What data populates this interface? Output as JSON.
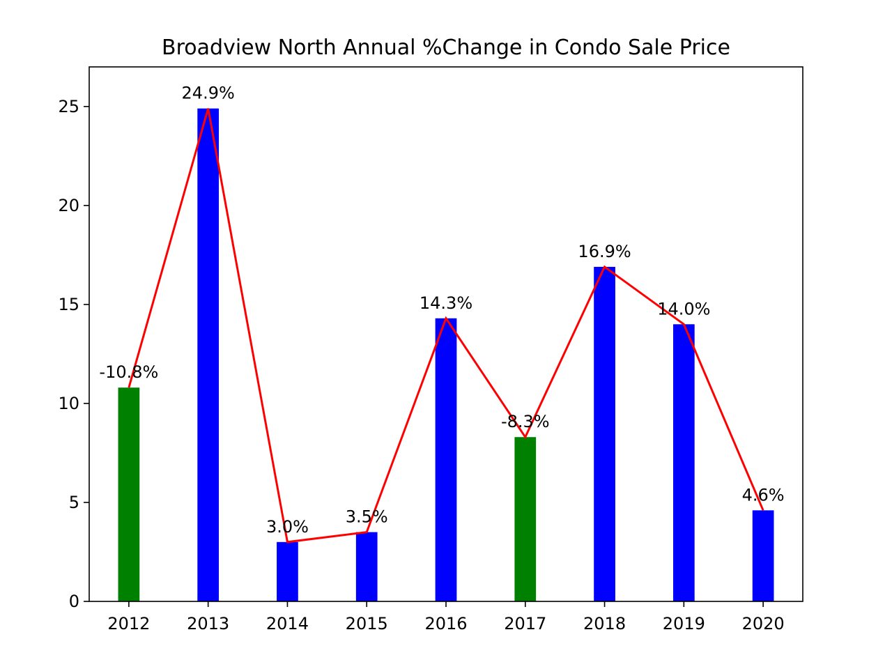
{
  "chart_data": {
    "type": "bar",
    "title": "Broadview North Annual %Change in Condo Sale Price",
    "xlabel": "",
    "ylabel": "",
    "categories": [
      "2012",
      "2013",
      "2014",
      "2015",
      "2016",
      "2017",
      "2018",
      "2019",
      "2020"
    ],
    "values": [
      10.8,
      24.9,
      3.0,
      3.5,
      14.3,
      8.3,
      16.9,
      14.0,
      4.6
    ],
    "data_labels": [
      "-10.8%",
      "24.9%",
      "3.0%",
      "3.5%",
      "14.3%",
      "-8.3%",
      "16.9%",
      "14.0%",
      "4.6%"
    ],
    "bar_colors": [
      "#008000",
      "#0000ff",
      "#0000ff",
      "#0000ff",
      "#0000ff",
      "#008000",
      "#0000ff",
      "#0000ff",
      "#0000ff"
    ],
    "line": {
      "values": [
        10.8,
        24.9,
        3.0,
        3.5,
        14.3,
        8.3,
        16.9,
        14.0,
        4.6
      ],
      "color": "#ff0000"
    },
    "ylim": [
      0,
      27
    ],
    "yticks": [
      0,
      5,
      10,
      15,
      20,
      25
    ],
    "grid": false,
    "colors": {
      "positive": "#0000ff",
      "negative": "#008000",
      "trend_line": "#ff0000"
    }
  }
}
